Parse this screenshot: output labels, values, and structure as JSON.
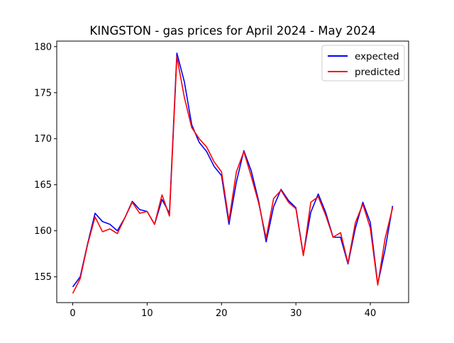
{
  "chart_data": {
    "type": "line",
    "title": "KINGSTON - gas prices for April 2024 - May 2024",
    "xlabel": "",
    "ylabel": "",
    "xlim": [
      -2.15,
      45.15
    ],
    "ylim": [
      152.2,
      180.6
    ],
    "xticks": [
      0,
      10,
      20,
      30,
      40
    ],
    "yticks": [
      155,
      160,
      165,
      170,
      175,
      180
    ],
    "grid": false,
    "legend_position": "top-right",
    "x": [
      0,
      1,
      2,
      3,
      4,
      5,
      6,
      7,
      8,
      9,
      10,
      11,
      12,
      13,
      14,
      15,
      16,
      17,
      18,
      19,
      20,
      21,
      22,
      23,
      24,
      25,
      26,
      27,
      28,
      29,
      30,
      31,
      32,
      33,
      34,
      35,
      36,
      37,
      38,
      39,
      40,
      41,
      42,
      43
    ],
    "series": [
      {
        "name": "expected",
        "color": "#0000ff",
        "values": [
          153.9,
          155.0,
          158.6,
          161.9,
          161.0,
          160.7,
          160.0,
          161.4,
          163.2,
          162.3,
          162.1,
          160.7,
          163.4,
          161.9,
          179.3,
          176.2,
          171.5,
          169.6,
          168.6,
          167.0,
          166.0,
          160.7,
          165.3,
          168.7,
          166.5,
          163.2,
          158.8,
          162.6,
          164.5,
          163.3,
          162.5,
          157.4,
          162.0,
          164.0,
          162.0,
          159.3,
          159.3,
          156.4,
          160.3,
          163.1,
          160.9,
          154.2,
          158.0,
          162.7
        ]
      },
      {
        "name": "predicted",
        "color": "#ff0000",
        "values": [
          153.2,
          154.8,
          158.5,
          161.5,
          159.9,
          160.2,
          159.7,
          161.4,
          163.1,
          161.9,
          162.1,
          160.7,
          163.9,
          161.6,
          178.9,
          174.5,
          171.2,
          170.0,
          169.1,
          167.5,
          166.4,
          161.1,
          166.4,
          168.6,
          165.9,
          163.0,
          159.2,
          163.5,
          164.4,
          163.1,
          162.4,
          157.3,
          163.1,
          163.7,
          161.7,
          159.3,
          159.8,
          156.5,
          160.9,
          162.9,
          160.3,
          154.1,
          159.2,
          162.5
        ]
      }
    ]
  }
}
